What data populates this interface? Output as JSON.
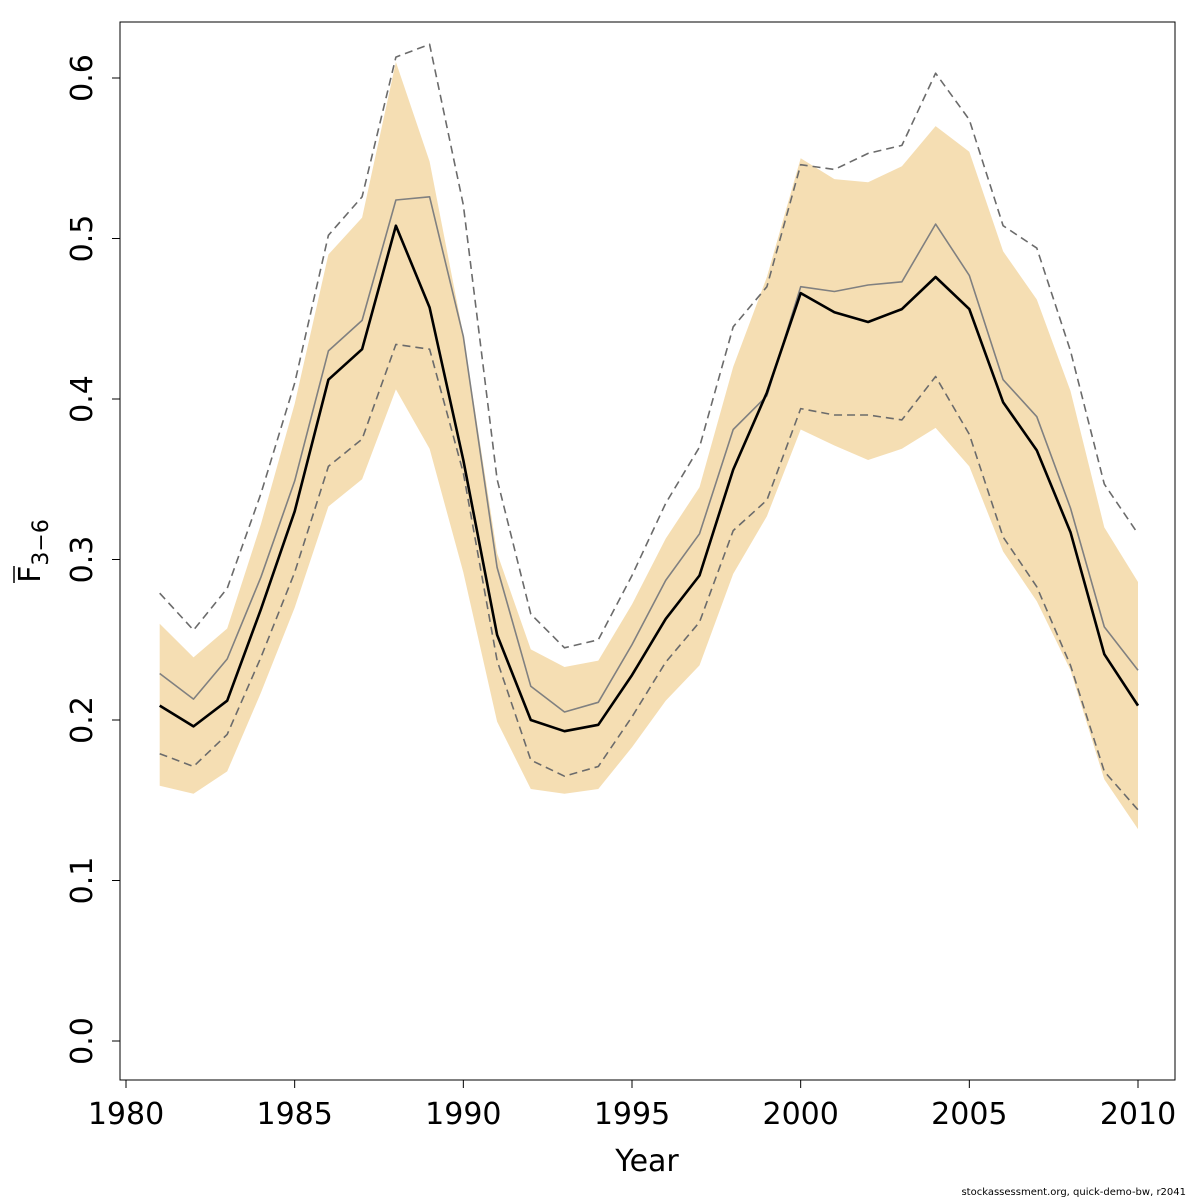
{
  "chart_data": {
    "type": "line",
    "xlabel": "Year",
    "ylabel_main": "F",
    "ylabel_sub": "3−6",
    "xlim": [
      1980,
      2011
    ],
    "ylim": [
      -0.02,
      0.64
    ],
    "xticks": [
      1980,
      1985,
      1990,
      1995,
      2000,
      2005,
      2010
    ],
    "yticks": [
      0.0,
      0.1,
      0.2,
      0.3,
      0.4,
      0.5,
      0.6
    ],
    "ytick_labels": [
      "0.0",
      "0.1",
      "0.2",
      "0.3",
      "0.4",
      "0.5",
      "0.6"
    ],
    "band_color": "#f5deb3",
    "x": [
      1981,
      1982,
      1983,
      1984,
      1985,
      1986,
      1987,
      1988,
      1989,
      1990,
      1991,
      1992,
      1993,
      1994,
      1995,
      1996,
      1997,
      1998,
      1999,
      2000,
      2001,
      2002,
      2003,
      2004,
      2005,
      2006,
      2007,
      2008,
      2009,
      2010
    ],
    "series": [
      {
        "style": "band",
        "lower": [
          0.159,
          0.154,
          0.168,
          0.217,
          0.27,
          0.333,
          0.35,
          0.406,
          0.369,
          0.292,
          0.199,
          0.157,
          0.154,
          0.157,
          0.183,
          0.212,
          0.234,
          0.291,
          0.327,
          0.381,
          0.371,
          0.362,
          0.369,
          0.382,
          0.358,
          0.305,
          0.274,
          0.231,
          0.163,
          0.132
        ],
        "upper": [
          0.26,
          0.239,
          0.257,
          0.322,
          0.397,
          0.49,
          0.513,
          0.61,
          0.548,
          0.44,
          0.304,
          0.244,
          0.233,
          0.237,
          0.272,
          0.313,
          0.345,
          0.42,
          0.476,
          0.55,
          0.537,
          0.535,
          0.545,
          0.57,
          0.554,
          0.492,
          0.462,
          0.405,
          0.32,
          0.286
        ]
      },
      {
        "style": "dashed",
        "color": "#6b6b6b",
        "values": [
          0.279,
          0.256,
          0.282,
          0.341,
          0.41,
          0.502,
          0.526,
          0.613,
          0.621,
          0.521,
          0.35,
          0.266,
          0.245,
          0.25,
          0.29,
          0.335,
          0.37,
          0.445,
          0.47,
          0.546,
          0.543,
          0.553,
          0.558,
          0.603,
          0.574,
          0.508,
          0.494,
          0.43,
          0.347,
          0.316
        ]
      },
      {
        "style": "dashed",
        "color": "#6b6b6b",
        "values": [
          0.179,
          0.171,
          0.191,
          0.239,
          0.292,
          0.358,
          0.375,
          0.434,
          0.431,
          0.354,
          0.237,
          0.175,
          0.165,
          0.171,
          0.202,
          0.236,
          0.261,
          0.318,
          0.337,
          0.394,
          0.39,
          0.39,
          0.387,
          0.414,
          0.378,
          0.314,
          0.283,
          0.234,
          0.168,
          0.144
        ]
      },
      {
        "style": "thin",
        "color": "#808080",
        "values": [
          0.229,
          0.213,
          0.238,
          0.289,
          0.349,
          0.43,
          0.449,
          0.524,
          0.526,
          0.439,
          0.295,
          0.221,
          0.205,
          0.211,
          0.247,
          0.287,
          0.316,
          0.381,
          0.402,
          0.47,
          0.467,
          0.471,
          0.473,
          0.509,
          0.477,
          0.412,
          0.389,
          0.332,
          0.258,
          0.231
        ]
      },
      {
        "style": "thick",
        "color": "#000000",
        "values": [
          0.209,
          0.196,
          0.212,
          0.269,
          0.33,
          0.412,
          0.431,
          0.508,
          0.457,
          0.362,
          0.253,
          0.2,
          0.193,
          0.197,
          0.228,
          0.263,
          0.29,
          0.356,
          0.404,
          0.466,
          0.454,
          0.448,
          0.456,
          0.476,
          0.456,
          0.398,
          0.368,
          0.317,
          0.241,
          0.209
        ]
      }
    ]
  },
  "footer": "stockassessment.org, quick-demo-bw, r2041"
}
